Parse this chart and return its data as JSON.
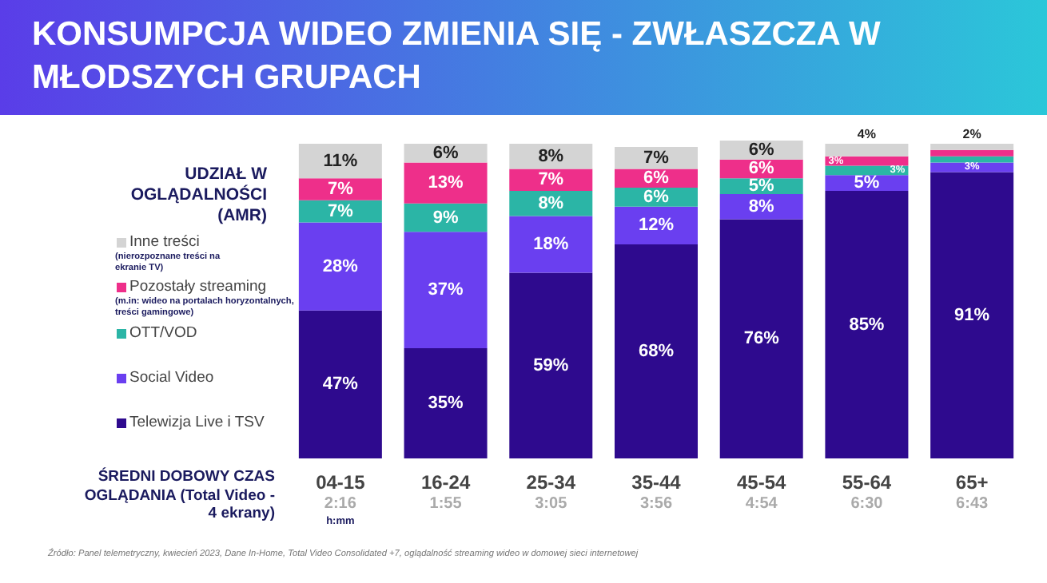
{
  "chart_data": {
    "type": "bar",
    "stacked": true,
    "title": "KONSUMPCJA WIDEO ZMIENIA SIĘ - ZWŁASZCZA W MŁODSZYCH GRUPACH",
    "ylabel": "UDZIAŁ W OGLĄDALNOŚCI (AMR)",
    "xlabel": "ŚREDNI DOBOWY CZAS OGLĄDANIA (Total Video - 4 ekrany)",
    "categories": [
      "04-15",
      "16-24",
      "25-34",
      "35-44",
      "45-54",
      "55-64",
      "65+"
    ],
    "ylim": [
      0,
      101
    ],
    "tick_labels": "x",
    "legend": "left",
    "series": [
      {
        "name": "Telewizja Live i TSV",
        "color": "#2e0a8e",
        "values": [
          47,
          35,
          59,
          68,
          76,
          85,
          91
        ],
        "value_labels": [
          "47%",
          "35%",
          "59%",
          "68%",
          "76%",
          "85%",
          "91%"
        ]
      },
      {
        "name": "Social Video",
        "color": "#6a3ff0",
        "values": [
          28,
          37,
          18,
          12,
          8,
          5,
          3
        ],
        "value_labels": [
          "28%",
          "37%",
          "18%",
          "12%",
          "8%",
          "5%",
          "3%"
        ]
      },
      {
        "name": "OTT/VOD",
        "color": "#2bb5a6",
        "values": [
          7,
          9,
          8,
          6,
          5,
          3,
          2
        ],
        "value_labels": [
          "7%",
          "9%",
          "8%",
          "6%",
          "5%",
          "3%",
          null
        ]
      },
      {
        "name": "Pozostały streaming",
        "color": "#ee2f8a",
        "values": [
          7,
          13,
          7,
          6,
          6,
          3,
          2
        ],
        "value_labels": [
          "7%",
          "13%",
          "7%",
          "6%",
          "6%",
          "3%",
          null
        ]
      },
      {
        "name": "Inne treści",
        "color": "#d4d4d4",
        "values": [
          11,
          6,
          8,
          7,
          6,
          4,
          2
        ],
        "value_labels": [
          "11%",
          "6%",
          "8%",
          "7%",
          "6%",
          "4%",
          "2%"
        ]
      }
    ],
    "annotations": [
      "(nierozpoznane treści na ekranie TV)",
      "(m.in: wideo na portalach horyzontalnych, treści gamingowe)",
      "h:mm",
      "Źródło: Panel telemetryczny, kwiecień 2023, Dane In-Home, Total Video Consolidated +7, oglądalność streaming wideo w domowej sieci internetowej",
      "2:16",
      "1:55",
      "3:05",
      "3:56",
      "4:54",
      "6:30",
      "6:43"
    ]
  }
}
